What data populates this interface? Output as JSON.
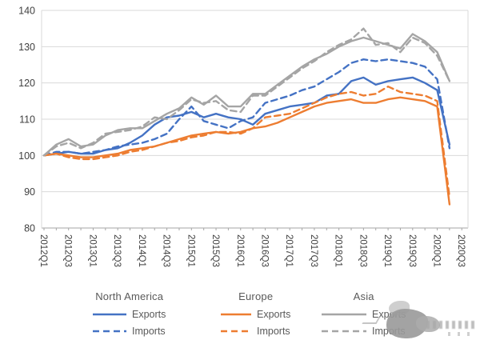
{
  "chart_data": {
    "type": "line",
    "grid": true,
    "legend_position": "bottom",
    "ylim": [
      80,
      140
    ],
    "yticks": [
      80,
      90,
      100,
      110,
      120,
      130,
      140
    ],
    "xticklabels": [
      "2012Q1",
      "2012Q3",
      "2013Q1",
      "2013Q3",
      "2014Q1",
      "2014Q3",
      "2015Q1",
      "2015Q3",
      "2016Q1",
      "2016Q3",
      "2017Q1",
      "2017Q3",
      "2018Q1",
      "2018Q3",
      "2019Q1",
      "2019Q3",
      "2020Q1",
      "2020Q3"
    ],
    "x": [
      "2012Q1",
      "2012Q2",
      "2012Q3",
      "2012Q4",
      "2013Q1",
      "2013Q2",
      "2013Q3",
      "2013Q4",
      "2014Q1",
      "2014Q2",
      "2014Q3",
      "2014Q4",
      "2015Q1",
      "2015Q2",
      "2015Q3",
      "2015Q4",
      "2016Q1",
      "2016Q2",
      "2016Q3",
      "2016Q4",
      "2017Q1",
      "2017Q2",
      "2017Q3",
      "2017Q4",
      "2018Q1",
      "2018Q2",
      "2018Q3",
      "2018Q4",
      "2019Q1",
      "2019Q2",
      "2019Q3",
      "2019Q4",
      "2020Q1",
      "2020Q2"
    ],
    "series": [
      {
        "name": "North America Exports",
        "region": "North America",
        "kind": "Exports",
        "color": "#4472C4",
        "dash": false,
        "values": [
          100,
          100.5,
          101,
          100.5,
          100.5,
          101.5,
          102,
          103.5,
          105.5,
          108.5,
          110.5,
          111,
          112,
          110.5,
          111.5,
          110.5,
          110,
          108.5,
          111.5,
          112.5,
          113.5,
          114,
          114.5,
          116.5,
          117,
          120.5,
          121.5,
          119.5,
          120.5,
          121,
          121.5,
          120,
          118,
          103
        ]
      },
      {
        "name": "North America Imports",
        "region": "North America",
        "kind": "Imports",
        "color": "#4472C4",
        "dash": true,
        "values": [
          100,
          101,
          101,
          100.5,
          101,
          101.5,
          102.5,
          103,
          103.5,
          104.5,
          106,
          110,
          113.5,
          109.5,
          108.5,
          107.5,
          109.5,
          110.5,
          114.5,
          115.5,
          116.5,
          118,
          119,
          121,
          123,
          125.5,
          126.5,
          126,
          126.5,
          126,
          125.5,
          124.5,
          121,
          102
        ]
      },
      {
        "name": "Europe Exports",
        "region": "Europe",
        "kind": "Exports",
        "color": "#ED7D31",
        "dash": false,
        "values": [
          100,
          100.5,
          100,
          99.5,
          99.5,
          100,
          100.5,
          101.5,
          102,
          102.5,
          103.5,
          104.5,
          105.5,
          106,
          106.5,
          106,
          106.5,
          107.5,
          108,
          109,
          110.5,
          112,
          113.5,
          114.5,
          115,
          115.5,
          114.5,
          114.5,
          115.5,
          116,
          115.5,
          115,
          113.5,
          86.5
        ]
      },
      {
        "name": "Europe Imports",
        "region": "Europe",
        "kind": "Imports",
        "color": "#ED7D31",
        "dash": true,
        "values": [
          100,
          100.5,
          99.5,
          99,
          99,
          99.5,
          100,
          101,
          101.5,
          102.5,
          103.5,
          104,
          105,
          105.5,
          106.5,
          106.5,
          106,
          107.5,
          110.5,
          111,
          111.5,
          113,
          114.5,
          116,
          117,
          117.5,
          116.5,
          117,
          119,
          117.5,
          117,
          116.5,
          115,
          88.5
        ]
      },
      {
        "name": "Asia Exports",
        "region": "Asia",
        "kind": "Exports",
        "color": "#A5A5A5",
        "dash": false,
        "values": [
          100,
          103,
          104.5,
          102.5,
          103,
          105.5,
          107,
          107.5,
          107.5,
          109.5,
          111.5,
          113,
          116,
          114,
          116.5,
          113.5,
          113.5,
          117,
          117,
          119.5,
          122,
          124.5,
          126.5,
          128,
          130,
          131.5,
          132.5,
          131.5,
          130.5,
          129.5,
          133.5,
          131.5,
          128.5,
          120.5
        ]
      },
      {
        "name": "Asia Imports",
        "region": "Asia",
        "kind": "Imports",
        "color": "#A5A5A5",
        "dash": true,
        "values": [
          100,
          102.5,
          103.5,
          102,
          103.5,
          106,
          106.5,
          107,
          108,
          110.5,
          110,
          112.5,
          115.5,
          114.5,
          115,
          112.5,
          112,
          116.5,
          116.5,
          119,
          121.5,
          124,
          126,
          128.5,
          130.5,
          132,
          135,
          130.5,
          131,
          128.5,
          132.5,
          131,
          127.5,
          120.5
        ]
      }
    ]
  },
  "legend": {
    "groups": [
      {
        "title": "North America",
        "color": "#4472C4",
        "items": [
          {
            "label": "Exports",
            "dash": false
          },
          {
            "label": "Imports",
            "dash": true
          }
        ]
      },
      {
        "title": "Europe",
        "color": "#ED7D31",
        "items": [
          {
            "label": "Exports",
            "dash": false
          },
          {
            "label": "Imports",
            "dash": true
          }
        ]
      },
      {
        "title": "Asia",
        "color": "#A5A5A5",
        "items": [
          {
            "label": "Exports",
            "dash": false
          },
          {
            "label": "Imports",
            "dash": true
          }
        ]
      }
    ]
  },
  "colors": {
    "north_america": "#4472C4",
    "europe": "#ED7D31",
    "asia": "#A5A5A5",
    "gridline": "#D9D9D9",
    "axis_line": "#A6A6A6",
    "tick_text": "#404040",
    "legend_text": "#595959"
  }
}
